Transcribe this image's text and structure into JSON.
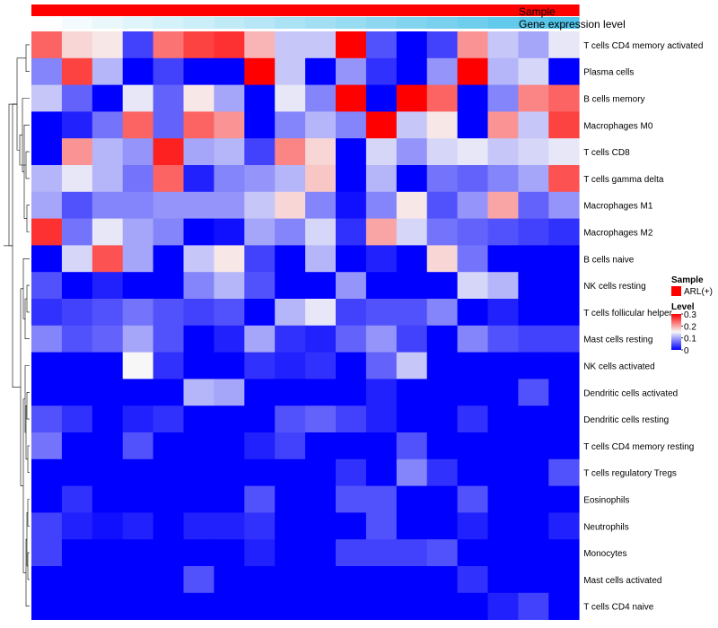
{
  "chart_data": {
    "type": "heatmap",
    "annotation_tracks": [
      "Sample",
      "Gene expression level"
    ],
    "column_count": 18,
    "sample_track_color": "#ff0000",
    "expression_gradient": {
      "low": "#ffffff",
      "high": "#4fc3e8"
    },
    "expression_levels": [
      0.0,
      0.06,
      0.12,
      0.18,
      0.24,
      0.29,
      0.35,
      0.41,
      0.47,
      0.53,
      0.59,
      0.65,
      0.71,
      0.76,
      0.82,
      0.88,
      0.94,
      1.0
    ],
    "rows": [
      "T cells CD4 memory activated",
      "Plasma cells",
      "B cells memory",
      "Macrophages M0",
      "T cells CD8",
      "T cells gamma delta",
      "Macrophages M1",
      "Macrophages M2",
      "B cells naive",
      "NK cells resting",
      "T cells follicular helper",
      "Mast cells resting",
      "NK cells activated",
      "Dendritic cells activated",
      "Dendritic cells resting",
      "T cells CD4 memory resting",
      "T cells regulatory  Tregs",
      "Eosinophils",
      "Neutrophils",
      "Monocytes",
      "Mast cells activated",
      "T cells CD4 naive"
    ],
    "values": [
      [
        0.24,
        0.17,
        0.16,
        0.04,
        0.23,
        0.26,
        0.27,
        0.19,
        0.12,
        0.12,
        0.3,
        0.05,
        0.0,
        0.04,
        0.21,
        0.12,
        0.1,
        0.14
      ],
      [
        0.08,
        0.26,
        0.11,
        0.0,
        0.04,
        0.0,
        0.0,
        0.3,
        0.12,
        0.0,
        0.09,
        0.03,
        0.0,
        0.09,
        0.3,
        0.11,
        0.13,
        0.0
      ],
      [
        0.12,
        0.06,
        0.0,
        0.14,
        0.06,
        0.16,
        0.1,
        0.0,
        0.14,
        0.08,
        0.3,
        0.0,
        0.3,
        0.24,
        0.0,
        0.08,
        0.22,
        0.24
      ],
      [
        0.0,
        0.02,
        0.07,
        0.24,
        0.06,
        0.24,
        0.21,
        0.0,
        0.08,
        0.11,
        0.08,
        0.3,
        0.12,
        0.16,
        0.0,
        0.21,
        0.12,
        0.26
      ],
      [
        0.0,
        0.21,
        0.11,
        0.09,
        0.28,
        0.1,
        0.11,
        0.04,
        0.22,
        0.17,
        0.0,
        0.13,
        0.09,
        0.13,
        0.14,
        0.12,
        0.13,
        0.14
      ],
      [
        0.11,
        0.14,
        0.11,
        0.07,
        0.24,
        0.02,
        0.08,
        0.09,
        0.11,
        0.18,
        0.0,
        0.11,
        0.0,
        0.07,
        0.06,
        0.08,
        0.1,
        0.25
      ],
      [
        0.1,
        0.05,
        0.08,
        0.08,
        0.09,
        0.09,
        0.09,
        0.12,
        0.17,
        0.08,
        0.01,
        0.08,
        0.16,
        0.05,
        0.09,
        0.2,
        0.06,
        0.09
      ],
      [
        0.27,
        0.07,
        0.14,
        0.1,
        0.08,
        0.0,
        0.01,
        0.1,
        0.08,
        0.13,
        0.03,
        0.2,
        0.13,
        0.07,
        0.06,
        0.05,
        0.04,
        0.03
      ],
      [
        0.0,
        0.13,
        0.25,
        0.1,
        0.0,
        0.12,
        0.16,
        0.04,
        0.0,
        0.11,
        0.0,
        0.02,
        0.0,
        0.17,
        0.07,
        0.0,
        0.0,
        0.0
      ],
      [
        0.05,
        0.0,
        0.02,
        0.0,
        0.0,
        0.08,
        0.11,
        0.05,
        0.0,
        0.0,
        0.09,
        0.0,
        0.0,
        0.0,
        0.13,
        0.11,
        0.0,
        0.0
      ],
      [
        0.03,
        0.04,
        0.05,
        0.07,
        0.05,
        0.04,
        0.05,
        0.0,
        0.11,
        0.14,
        0.04,
        0.05,
        0.05,
        0.08,
        0.0,
        0.02,
        0.0,
        0.0
      ],
      [
        0.08,
        0.05,
        0.06,
        0.1,
        0.05,
        0.0,
        0.02,
        0.1,
        0.03,
        0.02,
        0.06,
        0.09,
        0.04,
        0.0,
        0.08,
        0.05,
        0.04,
        0.04
      ],
      [
        0.0,
        0.0,
        0.0,
        0.15,
        0.03,
        0.0,
        0.0,
        0.03,
        0.02,
        0.03,
        0.0,
        0.06,
        0.12,
        0.0,
        0.0,
        0.0,
        0.0,
        0.0
      ],
      [
        0.0,
        0.0,
        0.0,
        0.0,
        0.0,
        0.11,
        0.1,
        0.0,
        0.0,
        0.0,
        0.0,
        0.02,
        0.0,
        0.0,
        0.0,
        0.0,
        0.05,
        0.0
      ],
      [
        0.05,
        0.03,
        0.0,
        0.02,
        0.03,
        0.0,
        0.0,
        0.0,
        0.05,
        0.06,
        0.04,
        0.02,
        0.0,
        0.0,
        0.03,
        0.0,
        0.0,
        0.0
      ],
      [
        0.07,
        0.0,
        0.0,
        0.05,
        0.0,
        0.0,
        0.0,
        0.02,
        0.04,
        0.0,
        0.0,
        0.0,
        0.05,
        0.0,
        0.0,
        0.0,
        0.0,
        0.0
      ],
      [
        0.0,
        0.0,
        0.0,
        0.0,
        0.0,
        0.0,
        0.0,
        0.0,
        0.0,
        0.0,
        0.03,
        0.0,
        0.08,
        0.03,
        0.0,
        0.0,
        0.0,
        0.05
      ],
      [
        0.0,
        0.03,
        0.0,
        0.0,
        0.0,
        0.0,
        0.0,
        0.05,
        0.0,
        0.0,
        0.05,
        0.05,
        0.0,
        0.0,
        0.05,
        0.0,
        0.0,
        0.0
      ],
      [
        0.04,
        0.02,
        0.01,
        0.02,
        0.0,
        0.02,
        0.02,
        0.03,
        0.0,
        0.0,
        0.0,
        0.05,
        0.0,
        0.0,
        0.02,
        0.0,
        0.0,
        0.02
      ],
      [
        0.04,
        0.0,
        0.0,
        0.0,
        0.0,
        0.0,
        0.0,
        0.02,
        0.0,
        0.0,
        0.04,
        0.04,
        0.04,
        0.05,
        0.0,
        0.0,
        0.0,
        0.0
      ],
      [
        0.0,
        0.0,
        0.0,
        0.0,
        0.0,
        0.05,
        0.0,
        0.0,
        0.0,
        0.0,
        0.0,
        0.0,
        0.0,
        0.0,
        0.03,
        0.0,
        0.0,
        0.0
      ],
      [
        0.0,
        0.0,
        0.0,
        0.0,
        0.0,
        0.0,
        0.0,
        0.0,
        0.0,
        0.0,
        0.0,
        0.0,
        0.0,
        0.0,
        0.0,
        0.02,
        0.04,
        0.0
      ]
    ],
    "color_scale": {
      "min": 0,
      "mid": 0.15,
      "max": 0.3,
      "low": "#0000ff",
      "mid_color": "#f7f7f7",
      "high": "#ff0000"
    },
    "legend": {
      "sample_title": "Sample",
      "sample_entry": "ARL(+)",
      "level_title": "Level",
      "level_ticks": [
        "0.3",
        "0.2",
        "0.1",
        "0"
      ],
      "level_tick_values": [
        0.3,
        0.2,
        0.1,
        0.0
      ]
    },
    "dendrogram": "rows",
    "legend_position": "right"
  }
}
